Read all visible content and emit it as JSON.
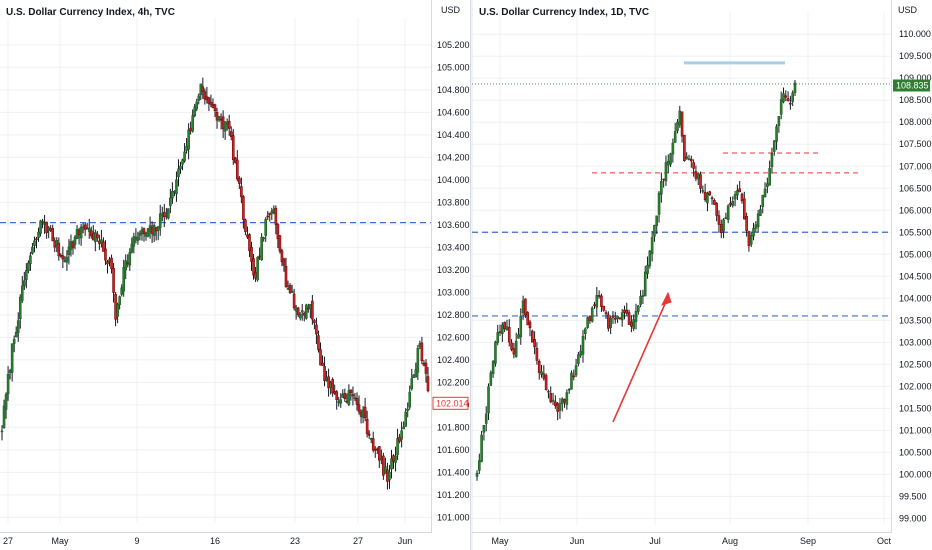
{
  "colors": {
    "up": "#2e7d32",
    "down": "#c62828",
    "up_border": "#1b5e20",
    "down_border": "#7f0000",
    "wick": "#131722",
    "level_blue": "#3d6ec9",
    "level_red": "#e53935",
    "top_bar": "#a8cfea",
    "price_green": "#2e7d32",
    "price_red": "#e53935"
  },
  "chart_data": [
    {
      "type": "candlestick",
      "title": "U.S. Dollar Currency Index, 4h, TVC",
      "y_unit": "USD",
      "ylim": [
        100.95,
        105.35
      ],
      "y_ticks": [
        "105.200",
        "105.000",
        "104.800",
        "104.600",
        "104.400",
        "104.200",
        "104.000",
        "103.800",
        "103.600",
        "103.400",
        "103.200",
        "103.000",
        "102.800",
        "102.600",
        "102.400",
        "102.200",
        "102.000",
        "101.800",
        "101.600",
        "101.400",
        "101.200",
        "101.000"
      ],
      "x_ticks": [
        "27",
        "May",
        "9",
        "16",
        "23",
        "27",
        "Jun"
      ],
      "last_price_label": "102.014",
      "horizontal_level": 103.62,
      "anchors": [
        [
          0,
          101.8
        ],
        [
          5,
          102.5
        ],
        [
          12,
          103.2
        ],
        [
          20,
          103.65
        ],
        [
          30,
          103.3
        ],
        [
          40,
          103.6
        ],
        [
          48,
          103.45
        ],
        [
          54,
          103.2
        ],
        [
          56,
          102.8
        ],
        [
          60,
          103.2
        ],
        [
          66,
          103.5
        ],
        [
          75,
          103.55
        ],
        [
          83,
          103.8
        ],
        [
          92,
          104.4
        ],
        [
          98,
          104.85
        ],
        [
          104,
          104.6
        ],
        [
          112,
          104.45
        ],
        [
          118,
          103.8
        ],
        [
          124,
          103.1
        ],
        [
          130,
          103.6
        ],
        [
          134,
          103.75
        ],
        [
          140,
          103.1
        ],
        [
          146,
          102.8
        ],
        [
          152,
          102.9
        ],
        [
          158,
          102.3
        ],
        [
          165,
          102.05
        ],
        [
          172,
          102.1
        ],
        [
          178,
          101.9
        ],
        [
          184,
          101.6
        ],
        [
          190,
          101.35
        ],
        [
          195,
          101.65
        ],
        [
          200,
          102.0
        ],
        [
          206,
          102.55
        ],
        [
          210,
          102.15
        ]
      ]
    },
    {
      "type": "candlestick",
      "title": "U.S. Dollar Currency Index, 1D, TVC",
      "y_unit": "USD",
      "ylim": [
        98.85,
        110.3
      ],
      "y_ticks": [
        "110.000",
        "109.500",
        "109.000",
        "108.500",
        "108.000",
        "107.500",
        "107.000",
        "106.500",
        "106.000",
        "105.500",
        "105.000",
        "104.500",
        "104.000",
        "103.500",
        "103.000",
        "102.500",
        "102.000",
        "101.500",
        "101.000",
        "100.500",
        "100.000",
        "99.500",
        "99.000"
      ],
      "x_ticks": [
        "May",
        "Jun",
        "Jul",
        "Aug",
        "Sep",
        "Oct"
      ],
      "last_price_label": "108.835",
      "horizontal_levels_blue": [
        105.5,
        103.6
      ],
      "horizontal_levels_red": [
        107.3,
        106.85
      ],
      "top_line_level": 109.35,
      "anchors": [
        [
          0,
          100.1
        ],
        [
          4,
          101.5
        ],
        [
          8,
          103.1
        ],
        [
          12,
          103.4
        ],
        [
          16,
          102.7
        ],
        [
          20,
          103.9
        ],
        [
          23,
          103.3
        ],
        [
          27,
          102.4
        ],
        [
          32,
          101.6
        ],
        [
          36,
          101.5
        ],
        [
          42,
          102.3
        ],
        [
          47,
          103.3
        ],
        [
          53,
          104.1
        ],
        [
          57,
          103.4
        ],
        [
          63,
          103.7
        ],
        [
          68,
          103.4
        ],
        [
          72,
          104.2
        ],
        [
          76,
          105.3
        ],
        [
          80,
          106.7
        ],
        [
          84,
          107.3
        ],
        [
          88,
          108.2
        ],
        [
          90,
          107.2
        ],
        [
          94,
          107.0
        ],
        [
          98,
          106.4
        ],
        [
          102,
          106.3
        ],
        [
          106,
          105.6
        ],
        [
          110,
          106.2
        ],
        [
          114,
          106.5
        ],
        [
          118,
          105.2
        ],
        [
          122,
          105.9
        ],
        [
          126,
          106.6
        ],
        [
          130,
          107.8
        ],
        [
          133,
          108.7
        ],
        [
          136,
          108.55
        ],
        [
          138,
          108.835
        ]
      ]
    }
  ]
}
